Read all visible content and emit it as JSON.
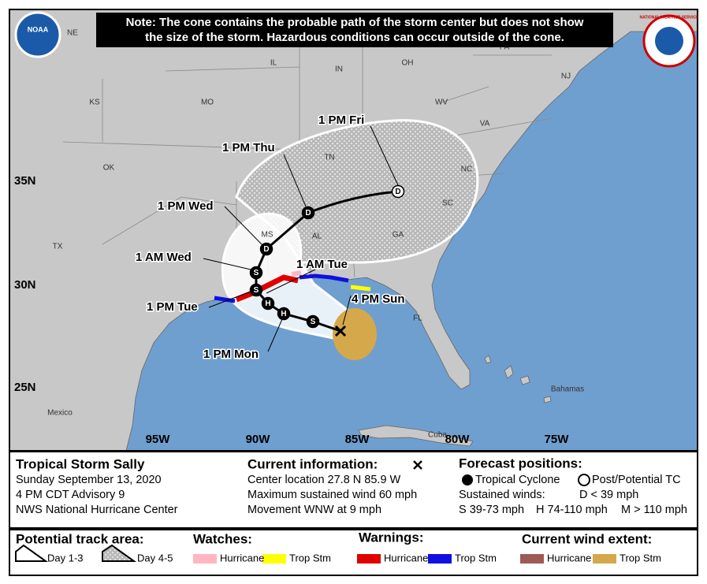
{
  "note": [
    "Note: The cone contains the probable path of the storm center but does not show",
    "the size of the storm. Hazardous conditions can occur outside of the cone."
  ],
  "logos": {
    "left": "NOAA",
    "right": "NATIONAL WEATHER SERVICE"
  },
  "map": {
    "state_labels": [
      "NE",
      "KS",
      "MO",
      "IL",
      "IN",
      "OH",
      "PA",
      "NJ",
      "WV",
      "VA",
      "NC",
      "TN",
      "OK",
      "SC",
      "MS",
      "AL",
      "GA",
      "TX",
      "FL"
    ],
    "place_labels": [
      "Mexico",
      "Bahamas",
      "Cuba"
    ],
    "lat_labels": [
      "35N",
      "30N",
      "25N"
    ],
    "lon_labels": [
      "95W",
      "90W",
      "85W",
      "80W",
      "75W"
    ],
    "forecast_labels": [
      "1 PM Fri",
      "1 PM Thu",
      "1 PM Wed",
      "1 AM Wed",
      "1 AM Tue",
      "4 PM Sun",
      "1 PM Tue",
      "1 PM Mon"
    ],
    "track_points": [
      "S",
      "H",
      "H",
      "S",
      "S",
      "D",
      "D",
      "D"
    ]
  },
  "info": {
    "storm": [
      "Tropical Storm Sally",
      "Sunday September 13, 2020",
      "4 PM CDT Advisory 9",
      "NWS National Hurricane Center"
    ],
    "current_title": "Current information:",
    "current": [
      "Center location 27.8 N 85.9 W",
      "Maximum sustained wind 60 mph",
      "Movement WNW at 9 mph"
    ],
    "forecast_title": "Forecast positions:",
    "forecast_types": [
      "Tropical Cyclone",
      "Post/Potential TC"
    ],
    "winds": [
      "Sustained winds:",
      "D < 39 mph",
      "S 39-73 mph",
      "H 74-110 mph",
      "M > 110 mph"
    ]
  },
  "legend": {
    "track_title": "Potential track area:",
    "track": [
      "Day 1-3",
      "Day 4-5"
    ],
    "watches_title": "Watches:",
    "watches": [
      "Hurricane",
      "Trop Stm"
    ],
    "warnings_title": "Warnings:",
    "warnings": [
      "Hurricane",
      "Trop Stm"
    ],
    "wind_title": "Current wind extent:",
    "wind": [
      "Hurricane",
      "Trop Stm"
    ]
  }
}
